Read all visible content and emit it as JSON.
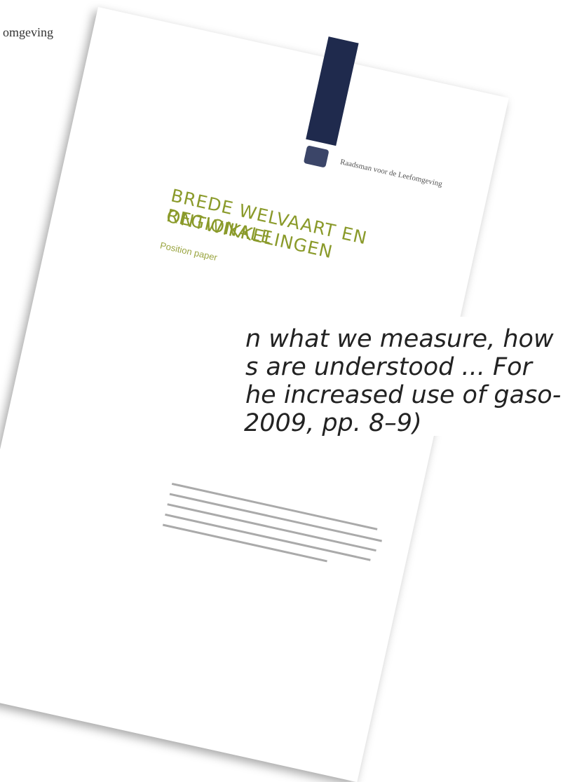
{
  "header": {
    "fragment": "omgeving"
  },
  "document": {
    "organization": "Raadsman voor de Leefomgeving",
    "title_line1": "BREDE WELVAART EN REGIONALE",
    "title_line2": "ONTWIKKELINGEN",
    "subtitle": "Position paper"
  },
  "quote": {
    "lines": [
      "n what we measure, how",
      "s are understood ... For",
      "he increased use of gaso-",
      "2009, pp. 8–9)"
    ]
  }
}
